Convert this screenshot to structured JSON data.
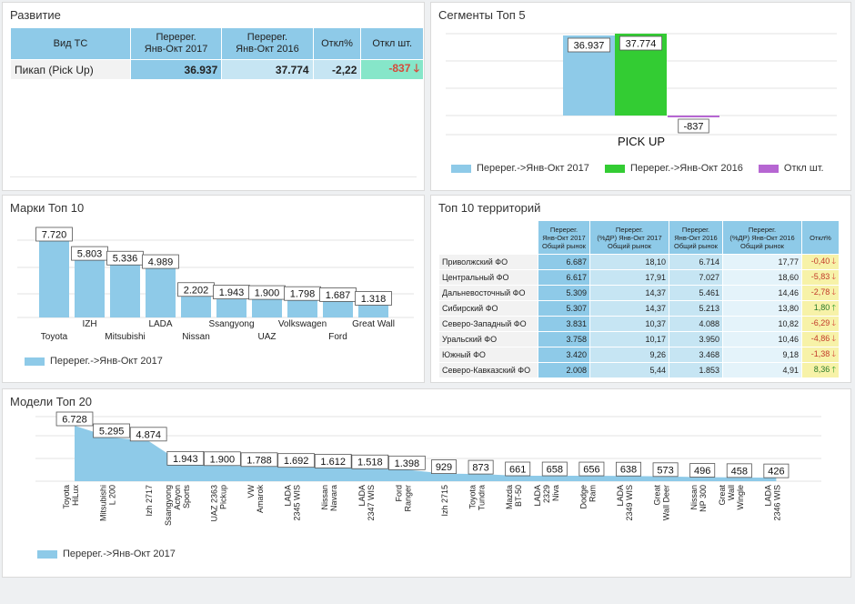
{
  "colors": {
    "blue": "#8ecae8",
    "green": "#33cc33",
    "purple": "#b666d2",
    "header": "#8ecae8",
    "cell_mid": "#c6e5f3",
    "cell_light": "#e4f3fa",
    "diff_bg": "#f7f2a8",
    "diff_green": "#86e6c9",
    "neg": "#d64a3a",
    "pos": "#2a9a2a"
  },
  "development": {
    "title": "Развитие",
    "headers": [
      "Вид ТС",
      "Перерег.\nЯнв-Окт 2017",
      "Перерег.\nЯнв-Окт 2016",
      "Откл%",
      "Откл шт."
    ],
    "row": {
      "type": "Пикап (Pick Up)",
      "v2017": "36.937",
      "v2016": "37.774",
      "pct": "-2,22",
      "diff": "-837",
      "arrow": "down-arrow-icon"
    }
  },
  "segments": {
    "title": "Сегменты Топ 5",
    "chart_data": {
      "type": "bar",
      "categories": [
        "PICK UP"
      ],
      "series": [
        {
          "name": "Перерег.->Янв-Окт 2017",
          "values": [
            36937
          ],
          "labels": [
            "36.937"
          ],
          "color": "#8ecae8"
        },
        {
          "name": "Перерег.->Янв-Окт 2016",
          "values": [
            37774
          ],
          "labels": [
            "37.774"
          ],
          "color": "#33cc33"
        },
        {
          "name": "Откл шт.",
          "values": [
            -837
          ],
          "labels": [
            "-837"
          ],
          "color": "#b666d2"
        }
      ],
      "legend": "bottom"
    }
  },
  "brands": {
    "title": "Марки Топ 10",
    "chart_data": {
      "type": "bar",
      "categories": [
        "Toyota",
        "IZH",
        "Mitsubishi",
        "LADA",
        "Nissan",
        "Ssangyong",
        "UAZ",
        "Volkswagen",
        "Ford",
        "Great Wall"
      ],
      "series": [
        {
          "name": "Перерег.->Янв-Окт 2017",
          "values": [
            7720,
            5803,
            5336,
            4989,
            2202,
            1943,
            1900,
            1798,
            1687,
            1318
          ],
          "labels": [
            "7.720",
            "5.803",
            "5.336",
            "4.989",
            "2.202",
            "1.943",
            "1.900",
            "1.798",
            "1.687",
            "1.318"
          ],
          "color": "#8ecae8"
        }
      ],
      "legend": "bottom-left"
    }
  },
  "territories": {
    "title": "Топ 10 территорий",
    "headers": [
      "",
      "Перерег.\nЯнв-Окт 2017\nОбщий рынок",
      "Перерег.\n(%ДР) Янв-Окт 2017\nОбщий рынок",
      "Перерег.\nЯнв-Окт 2016\nОбщий рынок",
      "Перерег.\n(%ДР) Янв-Окт 2016\nОбщий рынок",
      "Откл%"
    ],
    "rows": [
      {
        "name": "Приволжский ФО",
        "a": "6.687",
        "b": "18,10",
        "c": "6.714",
        "d": "17,77",
        "e": "-0,40",
        "dir": "down"
      },
      {
        "name": "Центральный ФО",
        "a": "6.617",
        "b": "17,91",
        "c": "7.027",
        "d": "18,60",
        "e": "-5,83",
        "dir": "down"
      },
      {
        "name": "Дальневосточный ФО",
        "a": "5.309",
        "b": "14,37",
        "c": "5.461",
        "d": "14,46",
        "e": "-2,78",
        "dir": "down"
      },
      {
        "name": "Сибирский ФО",
        "a": "5.307",
        "b": "14,37",
        "c": "5.213",
        "d": "13,80",
        "e": "1,80",
        "dir": "up"
      },
      {
        "name": "Северо-Западный ФО",
        "a": "3.831",
        "b": "10,37",
        "c": "4.088",
        "d": "10,82",
        "e": "-6,29",
        "dir": "down"
      },
      {
        "name": "Уральский ФО",
        "a": "3.758",
        "b": "10,17",
        "c": "3.950",
        "d": "10,46",
        "e": "-4,86",
        "dir": "down"
      },
      {
        "name": "Южный ФО",
        "a": "3.420",
        "b": "9,26",
        "c": "3.468",
        "d": "9,18",
        "e": "-1,38",
        "dir": "down"
      },
      {
        "name": "Северо-Кавказский ФО",
        "a": "2.008",
        "b": "5,44",
        "c": "1.853",
        "d": "4,91",
        "e": "8,36",
        "dir": "up"
      }
    ]
  },
  "models": {
    "title": "Модели Топ 20",
    "chart_data": {
      "type": "area",
      "categories": [
        "Toyota\nHiLux",
        "Mitsubishi\nL 200",
        "Izh 2717",
        "Ssangyong\nActyon\nSports",
        "UAZ 2363\nPickup",
        "VW\nAmarok",
        "LADA\n2345 WIS",
        "Nissan\nNavara",
        "LADA\n2347 WIS",
        "Ford\nRanger",
        "Izh 2715",
        "Toyota\nTundra",
        "Mazda\nBT-50",
        "LADA\n2329\nNiva",
        "Dodge\nRam",
        "LADA\n2349 WIS",
        "Great\nWall Deer",
        "Nissan\nNP 300",
        "Great\nWall\nWingle",
        "LADA\n2346 WIS"
      ],
      "series": [
        {
          "name": "Перерег.->Янв-Окт 2017",
          "values": [
            6728,
            5295,
            4874,
            1943,
            1900,
            1788,
            1692,
            1612,
            1518,
            1398,
            929,
            873,
            661,
            658,
            656,
            638,
            573,
            496,
            458,
            426
          ],
          "labels": [
            "6.728",
            "5.295",
            "4.874",
            "1.943",
            "1.900",
            "1.788",
            "1.692",
            "1.612",
            "1.518",
            "1.398",
            "929",
            "873",
            "661",
            "658",
            "656",
            "638",
            "573",
            "496",
            "458",
            "426"
          ],
          "color": "#8ecae8"
        }
      ],
      "legend": "bottom-left"
    }
  }
}
